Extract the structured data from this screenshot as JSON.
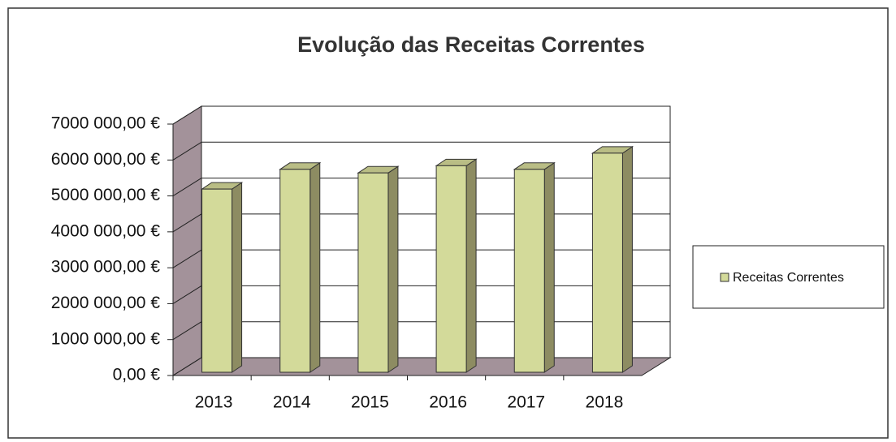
{
  "chart_data": {
    "type": "bar3d",
    "title": "Evolução das Receitas Correntes",
    "categories": [
      "2013",
      "2014",
      "2015",
      "2016",
      "2017",
      "2018"
    ],
    "series": [
      {
        "name": "Receitas Correntes",
        "color": "#d3da9a",
        "values": [
          5100,
          5650,
          5550,
          5750,
          5650,
          6100
        ]
      }
    ],
    "ylim": [
      0,
      7000
    ],
    "yticks": [
      {
        "value": 0,
        "label": "0,00 €"
      },
      {
        "value": 1000,
        "label": "1000 000,00 €"
      },
      {
        "value": 2000,
        "label": "2000 000,00 €"
      },
      {
        "value": 3000,
        "label": "3000 000,00 €"
      },
      {
        "value": 4000,
        "label": "4000 000,00 €"
      },
      {
        "value": 5000,
        "label": "5000 000,00 €"
      },
      {
        "value": 6000,
        "label": "6000 000,00 €"
      },
      {
        "value": 7000,
        "label": "7000 000,00 €"
      }
    ],
    "grid": true,
    "legend": "right"
  }
}
